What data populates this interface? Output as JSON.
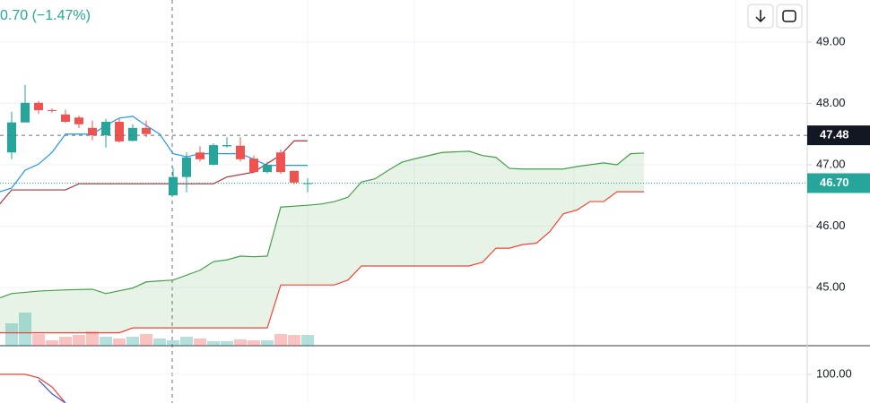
{
  "header": {
    "change": "0.70 (−1.47%)"
  },
  "chart_data": {
    "type": "candlestick",
    "ylim": [
      44.05,
      49.686
    ],
    "yticks": [
      {
        "value": 49,
        "label": "49.00"
      },
      {
        "value": 48,
        "label": "48.00"
      },
      {
        "value": 47,
        "label": "47.00"
      },
      {
        "value": 46,
        "label": "46.00"
      },
      {
        "value": 45,
        "label": "45.00"
      }
    ],
    "up_color": "#26a69a",
    "down_color": "#ef5350",
    "candles": {
      "open": [
        47.2,
        47.69,
        48.01,
        47.89,
        47.82,
        47.77,
        47.6,
        47.48,
        47.7,
        47.39,
        47.6,
        null,
        46.5,
        46.8,
        47.2,
        47.0,
        47.3,
        47.31,
        47.1,
        46.88,
        47.2,
        46.9,
        46.7
      ],
      "high": [
        47.86,
        48.3,
        48.04,
        47.92,
        47.9,
        47.8,
        47.72,
        47.75,
        47.75,
        47.66,
        47.72,
        null,
        46.95,
        47.2,
        47.3,
        47.35,
        47.45,
        47.45,
        47.15,
        47.05,
        47.25,
        46.9,
        46.78
      ],
      "low": [
        47.09,
        47.69,
        47.83,
        47.85,
        47.68,
        47.6,
        47.4,
        47.28,
        47.36,
        47.38,
        47.45,
        null,
        46.5,
        46.55,
        47.05,
        46.99,
        47.28,
        47.05,
        46.86,
        46.86,
        46.85,
        46.68,
        46.55
      ],
      "close": [
        47.69,
        48.01,
        47.89,
        47.88,
        47.7,
        47.66,
        47.48,
        47.7,
        47.38,
        47.6,
        47.5,
        null,
        46.8,
        47.12,
        47.09,
        47.32,
        47.32,
        47.09,
        46.88,
        47.0,
        46.88,
        46.71,
        46.7
      ]
    },
    "series": [
      {
        "color": "#2196f3",
        "x": [
          -1,
          0,
          1,
          2,
          3,
          4,
          5,
          6,
          7,
          8,
          9,
          10,
          11,
          12,
          13,
          14,
          15,
          16,
          17,
          18,
          19,
          22
        ],
        "values": [
          46.55,
          46.62,
          46.91,
          47.01,
          47.2,
          47.5,
          47.5,
          47.5,
          47.64,
          47.76,
          47.79,
          47.64,
          47.5,
          47.18,
          47.13,
          47.18,
          47.18,
          47.18,
          47.18,
          47.09,
          46.99,
          46.99
        ]
      },
      {
        "color": "#a5373a",
        "x": [
          -1,
          0,
          4,
          5,
          15,
          16,
          18,
          20,
          21,
          22
        ],
        "values": [
          46.33,
          46.59,
          46.59,
          46.69,
          46.69,
          46.8,
          46.88,
          47.16,
          47.39,
          47.39
        ]
      },
      {
        "color": "#43a047",
        "x": [
          -1,
          0,
          2,
          4,
          6,
          7,
          9,
          10,
          12,
          14,
          15,
          16,
          17,
          18,
          19,
          20,
          22,
          23,
          24,
          25,
          26,
          27,
          28,
          29,
          30,
          32,
          34,
          35,
          36,
          37,
          38,
          41,
          42,
          44,
          45,
          46,
          47
        ],
        "values": [
          44.82,
          44.9,
          44.94,
          44.96,
          44.97,
          44.9,
          44.99,
          45.09,
          45.12,
          45.28,
          45.42,
          45.45,
          45.51,
          45.5,
          45.51,
          46.31,
          46.34,
          46.36,
          46.4,
          46.47,
          46.72,
          46.77,
          46.91,
          47.04,
          47.1,
          47.2,
          47.22,
          47.15,
          47.12,
          46.94,
          46.93,
          46.93,
          46.97,
          47.03,
          47.0,
          47.18,
          47.19
        ]
      },
      {
        "color": "#f44336",
        "x": [
          -1,
          8,
          9,
          19,
          20,
          24,
          25,
          26,
          34,
          35,
          36,
          37,
          38,
          39,
          40,
          41,
          42,
          43,
          44,
          45,
          47
        ],
        "values": [
          44.26,
          44.26,
          44.34,
          44.34,
          45.04,
          45.04,
          45.12,
          45.35,
          45.35,
          45.41,
          45.64,
          45.64,
          45.7,
          45.72,
          45.91,
          46.2,
          46.26,
          46.4,
          46.4,
          46.56,
          46.56
        ]
      }
    ],
    "cloud_color": "#43a047",
    "volume": {
      "vlim": [
        0,
        100
      ],
      "values": [
        25,
        37,
        13,
        6,
        10,
        12,
        16,
        10,
        8,
        10,
        13,
        8,
        6,
        10,
        8,
        5,
        5,
        7,
        6,
        6,
        13,
        12,
        12
      ]
    },
    "crosshair": {
      "value": 47.48,
      "label": "47.48"
    },
    "last_price": {
      "value": 46.7,
      "label": "46.70"
    },
    "indicator": {
      "ylim": [
        97.5,
        102.5
      ],
      "yticks": [
        {
          "value": 100,
          "label": "100.00"
        }
      ],
      "series": [
        {
          "color": "#f44336",
          "x": [
            -1,
            0,
            1,
            2,
            3,
            4
          ],
          "values": [
            100,
            100,
            100,
            99.7,
            98.9,
            97.5
          ]
        },
        {
          "color": "#3f51d5",
          "x": [
            2,
            3,
            4
          ],
          "values": [
            99.5,
            98.3,
            97.5
          ]
        }
      ]
    }
  }
}
